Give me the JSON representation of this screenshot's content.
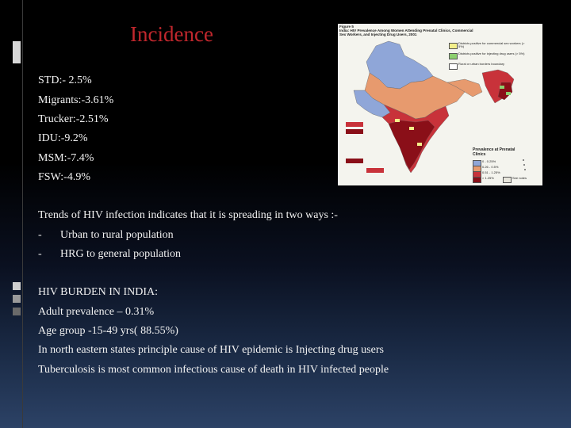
{
  "slide": {
    "title": "Incidence",
    "stats": [
      "STD:- 2.5%",
      "Migrants:-3.61%",
      "Trucker:-2.51%",
      "IDU:-9.2%",
      "MSM:-7.4%",
      "FSW:-4.9%"
    ],
    "trends_intro": "Trends of HIV infection indicates that it is spreading in two ways :-",
    "trend_items": [
      "Urban to rural population",
      "HRG to general population"
    ],
    "dash": "-",
    "burden": {
      "heading": "HIV BURDEN IN INDIA:",
      "lines": [
        "Adult prevalence – 0.31%",
        "Age group -15-49 yrs( 88.55%)",
        "In north eastern states principle cause of HIV epidemic is Injecting drug users",
        "Tuberculosis is most common infectious cause of death in HIV infected people"
      ]
    }
  },
  "map": {
    "figure_label": "Figure 5",
    "caption": "India: HIV Prevalence Among Women Attending Prenatal Clinics, Commercial Sex Workers, and Injecting Drug Users, 2001",
    "legend_top": [
      {
        "label": "Districts positive for commercial sex workers (> 5%)",
        "color": "#f3ef8a"
      },
      {
        "label": "Districts positive for injecting drug users (> 5%)",
        "color": "#8ccf6e"
      },
      {
        "label": "Rural or urban borders boundary",
        "color": "#ffffff"
      }
    ],
    "prevalence_title": "Prevalence at Prenatal Clinics",
    "legend_prev": [
      {
        "label": "0 - 0.25%",
        "color": "#8fa6d8"
      },
      {
        "label": "0.26 - 0.5%",
        "color": "#e79a6e"
      },
      {
        "label": "0.51 - 1.25%",
        "color": "#c8323a"
      },
      {
        "label": "> 1.25%",
        "color": "#8a0f18"
      },
      {
        "label": "See notes",
        "color": "#e8e6dc"
      }
    ],
    "colors": {
      "low": "#8fa6d8",
      "mid": "#e79a6e",
      "high": "#c8323a",
      "very_high": "#8a0f18"
    }
  }
}
